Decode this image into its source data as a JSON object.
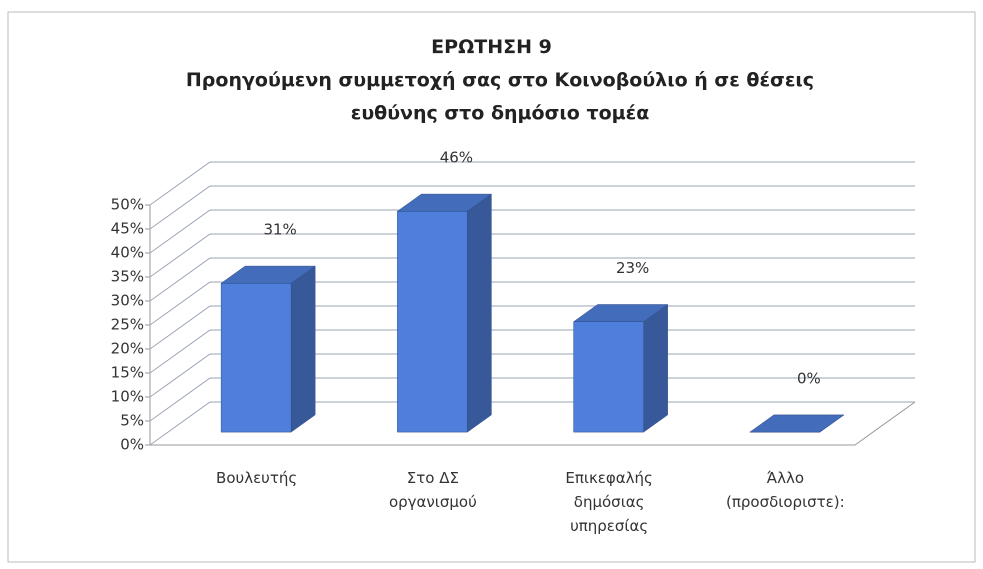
{
  "chart_data": {
    "type": "bar3d",
    "title": "ΕΡΩΤΗΣΗ 9",
    "subtitle": "Προηγούμενη συμμετοχή σας στο Κοινοβούλιο ή σε θέσεις ευθύνης στο δημόσιο τομέα",
    "categories": [
      "Βουλευτής",
      "Στο ΔΣ οργανισμού",
      "Επικεφαλής δημόσιας υπηρεσίας",
      "Άλλο (προσδιοριστε):"
    ],
    "values": [
      31,
      46,
      23,
      0
    ],
    "value_labels": [
      "31%",
      "46%",
      "23%",
      "0%"
    ],
    "color": "#4f7fdc",
    "ylim": [
      0,
      50
    ],
    "yticks": [
      {
        "value": 0,
        "label": "0%"
      },
      {
        "value": 5,
        "label": "5%"
      },
      {
        "value": 10,
        "label": "10%"
      },
      {
        "value": 15,
        "label": "15%"
      },
      {
        "value": 20,
        "label": "20%"
      },
      {
        "value": 25,
        "label": "25%"
      },
      {
        "value": 30,
        "label": "30%"
      },
      {
        "value": 35,
        "label": "35%"
      },
      {
        "value": 40,
        "label": "40%"
      },
      {
        "value": 45,
        "label": "45%"
      },
      {
        "value": 50,
        "label": "50%"
      }
    ],
    "grid": true
  }
}
